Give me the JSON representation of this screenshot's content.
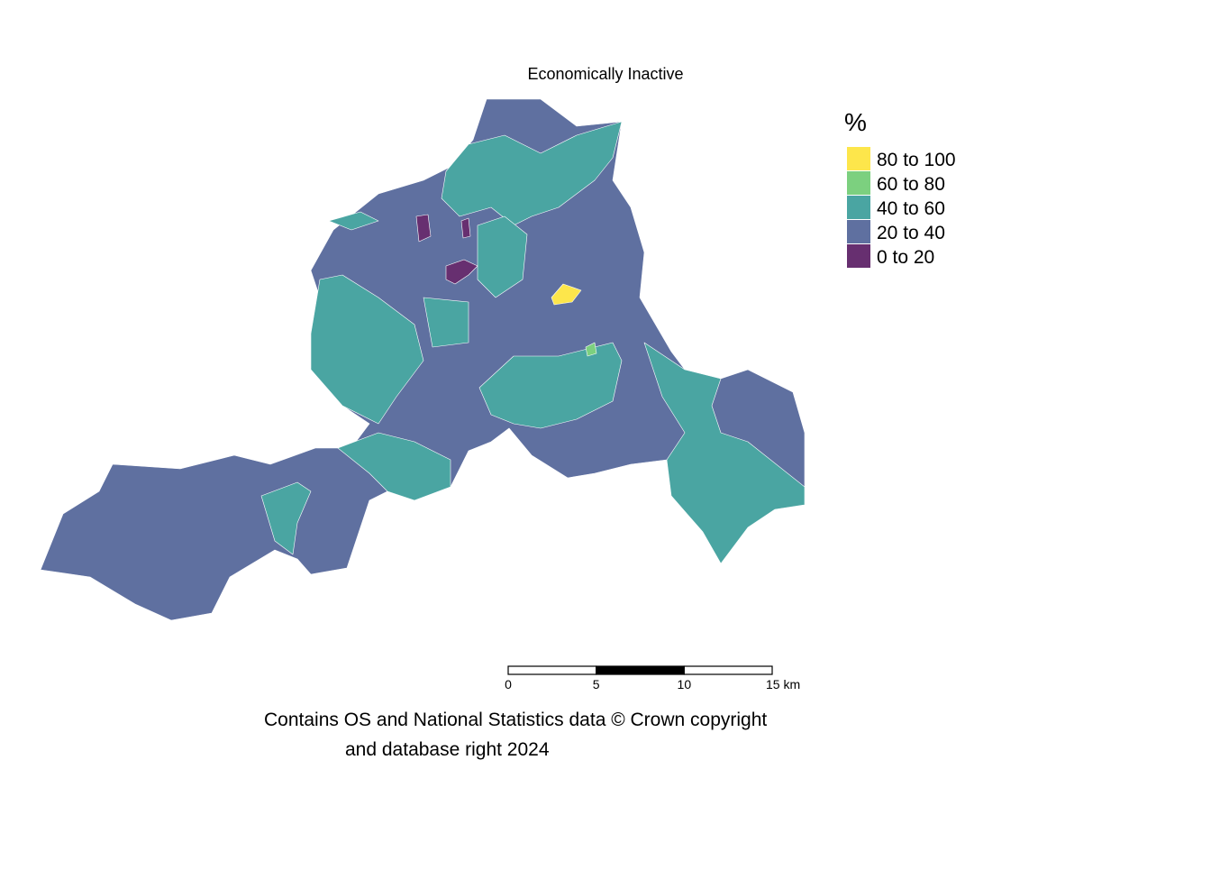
{
  "title": "Economically Inactive",
  "legend": {
    "title": "%",
    "items": [
      {
        "label": "80 to 100",
        "color": "#fde64b"
      },
      {
        "label": "60 to 80",
        "color": "#7cd07f"
      },
      {
        "label": "40 to 60",
        "color": "#4aa5a2"
      },
      {
        "label": "20 to 40",
        "color": "#5f70a0"
      },
      {
        "label": "0 to 20",
        "color": "#672f70"
      }
    ]
  },
  "scale_bar": {
    "ticks": [
      0,
      5,
      10,
      {
        "value": 15,
        "label": "15 km"
      }
    ]
  },
  "credit": [
    "Contains OS and National Statistics data © Crown copyright",
    "and database right 2024"
  ]
}
